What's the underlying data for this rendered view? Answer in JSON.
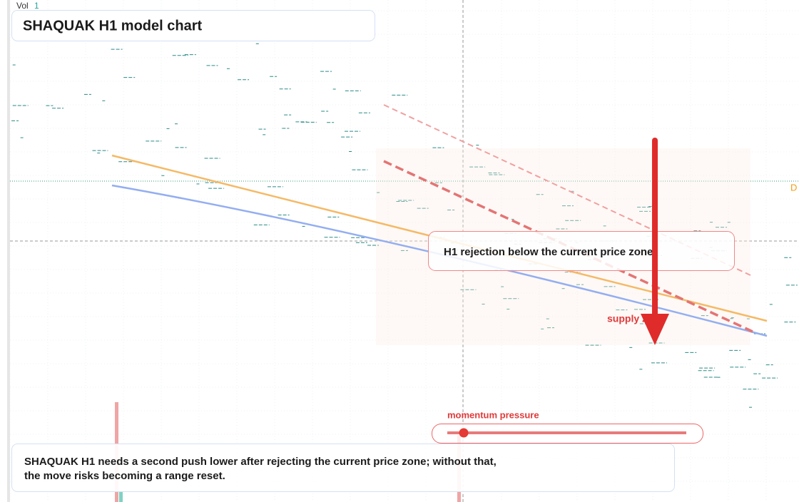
{
  "header": {
    "vol_label": "Vol",
    "vol_value": "1",
    "title": "SHAQUAK H1 model chart"
  },
  "price_tag": "D",
  "annotations": {
    "callout": "H1 rejection below the current price zone",
    "zone_label": "supply zone",
    "meter_label": "momentum pressure"
  },
  "note": {
    "lines": [
      "SHAQUAK H1 needs a second push lower after rejecting the current price zone; without that,",
      "the move risks becoming a range reset."
    ]
  }
}
